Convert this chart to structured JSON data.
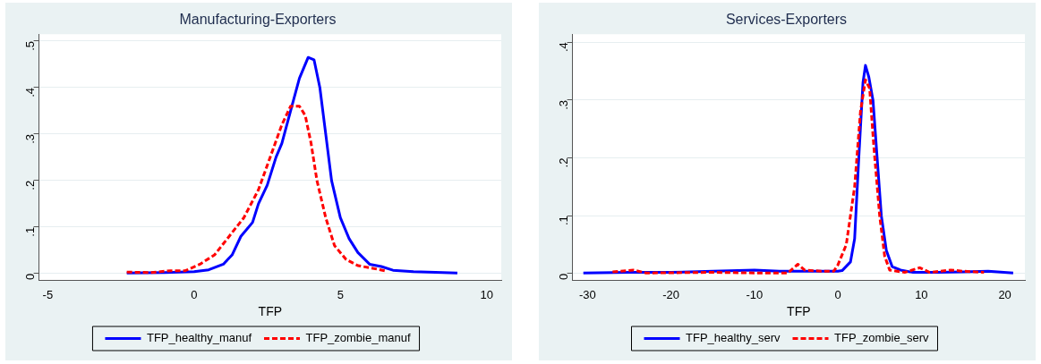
{
  "chart_data": [
    {
      "type": "line",
      "title": "Manufacturing-Exporters",
      "xlabel": "TFP",
      "xlim": [
        -5.3,
        10.5
      ],
      "xticks": [
        -5,
        0,
        5,
        10
      ],
      "ylim": [
        -0.015,
        0.515
      ],
      "yticks": [
        0,
        {
          "value": 0.1,
          "label": ".1"
        },
        {
          "value": 0.2,
          "label": ".2"
        },
        {
          "value": 0.3,
          "label": ".3"
        },
        {
          "value": 0.4,
          "label": ".4"
        },
        {
          "value": 0.5,
          "label": ".5"
        }
      ],
      "grid": "y",
      "legend": "bottom",
      "marker": "none",
      "series": [
        {
          "name": "TFP_healthy_manuf",
          "color": "#0000ff",
          "line_style": "solid",
          "x": [
            -2.3,
            -1,
            0,
            0.5,
            1,
            1.3,
            1.6,
            2,
            2.2,
            2.5,
            2.8,
            3,
            3.3,
            3.6,
            3.9,
            4.1,
            4.3,
            4.5,
            4.7,
            5,
            5.3,
            5.6,
            6,
            6.4,
            6.8,
            7.5,
            8.5,
            9
          ],
          "values": [
            0.001,
            0.002,
            0.004,
            0.008,
            0.02,
            0.04,
            0.08,
            0.11,
            0.15,
            0.19,
            0.25,
            0.28,
            0.35,
            0.42,
            0.465,
            0.46,
            0.4,
            0.3,
            0.2,
            0.12,
            0.075,
            0.045,
            0.02,
            0.015,
            0.007,
            0.004,
            0.002,
            0.001
          ]
        },
        {
          "name": "TFP_zombie_manuf",
          "color": "#ff0000",
          "line_style": "dashed",
          "x": [
            -2.3,
            -1.5,
            -0.8,
            -0.3,
            0.2,
            0.7,
            1.2,
            1.7,
            2.2,
            2.6,
            3,
            3.3,
            3.6,
            3.8,
            4,
            4.2,
            4.5,
            4.8,
            5.2,
            5.6,
            6.2,
            6.6
          ],
          "values": [
            0.003,
            0.002,
            0.006,
            0.006,
            0.02,
            0.04,
            0.08,
            0.12,
            0.18,
            0.25,
            0.32,
            0.36,
            0.36,
            0.34,
            0.28,
            0.2,
            0.12,
            0.06,
            0.03,
            0.017,
            0.01,
            0.005
          ]
        }
      ]
    },
    {
      "type": "line",
      "title": "Services-Exporters",
      "xlabel": "TFP",
      "xlim": [
        -31.8,
        22.4
      ],
      "xticks": [
        -30,
        -20,
        -10,
        0,
        10,
        20
      ],
      "ylim": [
        -0.012,
        0.414
      ],
      "yticks": [
        0,
        {
          "value": 0.1,
          "label": ".1"
        },
        {
          "value": 0.2,
          "label": ".2"
        },
        {
          "value": 0.3,
          "label": ".3"
        },
        {
          "value": 0.4,
          "label": ".4"
        }
      ],
      "grid": "y",
      "legend": "bottom",
      "marker": "none",
      "series": [
        {
          "name": "TFP_healthy_serv",
          "color": "#0000ff",
          "line_style": "solid",
          "x": [
            -30.5,
            -25,
            -20,
            -15,
            -10,
            -7,
            -3,
            0,
            0.5,
            1.5,
            2,
            2.5,
            3,
            3.3,
            3.7,
            4.2,
            4.7,
            5.2,
            5.8,
            6.5,
            7.5,
            9,
            12,
            15,
            18,
            21
          ],
          "values": [
            0.001,
            0.002,
            0.002,
            0.004,
            0.006,
            0.004,
            0.004,
            0.004,
            0.005,
            0.02,
            0.06,
            0.2,
            0.33,
            0.36,
            0.34,
            0.3,
            0.2,
            0.1,
            0.04,
            0.012,
            0.006,
            0.002,
            0.002,
            0.003,
            0.004,
            0.001
          ]
        },
        {
          "name": "TFP_zombie_serv",
          "color": "#ff0000",
          "line_style": "dashed",
          "x": [
            -27,
            -24.5,
            -23,
            -15,
            -10,
            -6,
            -4.8,
            -4,
            -2,
            -0.5,
            0,
            1,
            2,
            2.7,
            3.3,
            3.8,
            4.3,
            5,
            5.6,
            6.2,
            8,
            9.8,
            11,
            13.5,
            15,
            17.5
          ],
          "values": [
            0.003,
            0.006,
            0.001,
            0.002,
            0.001,
            0.001,
            0.016,
            0.006,
            0.004,
            0.004,
            0.015,
            0.05,
            0.15,
            0.28,
            0.335,
            0.32,
            0.22,
            0.1,
            0.03,
            0.006,
            0.002,
            0.01,
            0.002,
            0.006,
            0.004,
            0.002
          ]
        }
      ]
    }
  ]
}
